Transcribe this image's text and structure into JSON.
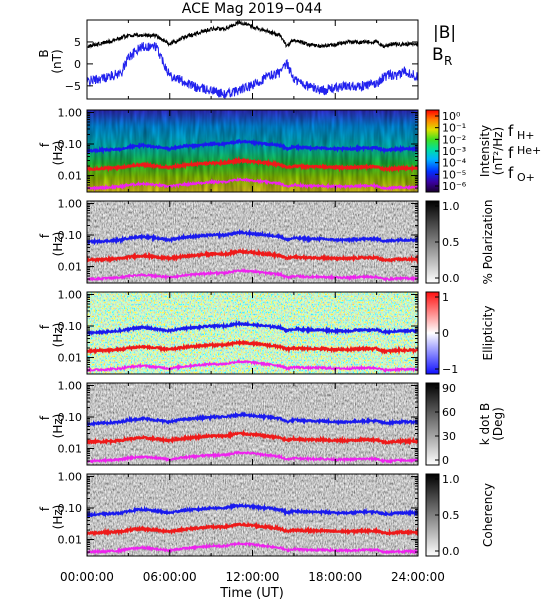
{
  "title": "ACE Mag 2019−044",
  "x_axis": {
    "label": "Time (UT)",
    "ticks": [
      "00:00:00",
      "06:00:00",
      "12:00:00",
      "18:00:00",
      "24:00:00"
    ],
    "range_hours": [
      0,
      24
    ]
  },
  "freq_ticks": [
    "1.00",
    "0.10",
    "0.01"
  ],
  "colors": {
    "B_total": "#000000",
    "B_R": "#2222ee",
    "f_H": "#1a1aee",
    "f_He": "#ee1a1a",
    "f_O": "#ee22ee",
    "legend_H": "#2222cc",
    "legend_He": "#cc2222",
    "legend_O": "#dd22dd"
  },
  "panels": [
    {
      "id": "mag",
      "ylabel": "B",
      "yunit": "(nT)",
      "yticks": [
        "5",
        "0",
        "−5"
      ],
      "ylim": [
        -8,
        10
      ]
    },
    {
      "id": "intensity",
      "ylabel": "f",
      "yunit": "(Hz)",
      "cbar_label": "Intensity",
      "cbar_unit": "(nT²/Hz)",
      "cbar_ticks": [
        "10⁰",
        "10⁻¹",
        "10⁻²",
        "10⁻³",
        "10⁻⁴",
        "10⁻⁵",
        "10⁻⁶"
      ]
    },
    {
      "id": "polarization",
      "ylabel": "f",
      "yunit": "(Hz)",
      "cbar_label": "% Polarization",
      "cbar_ticks": [
        "1.0",
        "0.5",
        "0.0"
      ]
    },
    {
      "id": "ellipticity",
      "ylabel": "f",
      "yunit": "(Hz)",
      "cbar_label": "Ellipticity",
      "cbar_ticks": [
        "1",
        "0",
        "−1"
      ]
    },
    {
      "id": "kdotb",
      "ylabel": "f",
      "yunit": "(Hz)",
      "cbar_label": "k dot B",
      "cbar_unit": "(Deg)",
      "cbar_ticks": [
        "90",
        "60",
        "30",
        "0"
      ]
    },
    {
      "id": "coherency",
      "ylabel": "f",
      "yunit": "(Hz)",
      "cbar_label": "Coherency",
      "cbar_ticks": [
        "1.0",
        "0.5",
        "0.0"
      ]
    }
  ],
  "mag_legend": {
    "total": "|B|",
    "radial": "B",
    "radial_sub": "R"
  },
  "ion_legend": [
    {
      "base": "f",
      "sub": "H+"
    },
    {
      "base": "f",
      "sub": "He+"
    },
    {
      "base": "f",
      "sub": "O+"
    }
  ],
  "chart_data": {
    "type": "line",
    "x": [
      0,
      1.5,
      2.5,
      3,
      4,
      5,
      6,
      7,
      8,
      9,
      10,
      11,
      12,
      13,
      14,
      14.5,
      15,
      16,
      17,
      18,
      19,
      20,
      21,
      21.5,
      22,
      22.5,
      23,
      24
    ],
    "series": [
      {
        "name": "|B|",
        "values": [
          4,
          5,
          6,
          6.5,
          6.5,
          6.5,
          4.5,
          6,
          7,
          8,
          8,
          9.5,
          8.5,
          7.5,
          6.5,
          4,
          5.5,
          4.5,
          4,
          4.5,
          5,
          5,
          5,
          4,
          4.5,
          4.5,
          4.5,
          4.5
        ]
      },
      {
        "name": "B_R",
        "values": [
          -4,
          -3,
          -2,
          1.5,
          4,
          4,
          -2.5,
          -4,
          -5.5,
          -6,
          -7,
          -6,
          -5,
          -3,
          -2,
          0,
          -3.5,
          -5,
          -6,
          -5.5,
          -5,
          -5,
          -4.5,
          -3,
          -2.5,
          -3,
          -1.5,
          -3
        ]
      },
      {
        "name": "f_H+",
        "values": [
          0.06,
          0.065,
          0.07,
          0.08,
          0.09,
          0.08,
          0.07,
          0.085,
          0.09,
          0.1,
          0.1,
          0.12,
          0.11,
          0.1,
          0.09,
          0.07,
          0.08,
          0.075,
          0.075,
          0.07,
          0.07,
          0.075,
          0.075,
          0.065,
          0.065,
          0.07,
          0.07,
          0.07
        ]
      },
      {
        "name": "f_He+",
        "values": [
          0.016,
          0.017,
          0.018,
          0.02,
          0.022,
          0.02,
          0.018,
          0.021,
          0.023,
          0.025,
          0.025,
          0.03,
          0.028,
          0.025,
          0.022,
          0.018,
          0.02,
          0.019,
          0.019,
          0.018,
          0.018,
          0.019,
          0.019,
          0.016,
          0.016,
          0.017,
          0.017,
          0.017
        ]
      },
      {
        "name": "f_O+",
        "values": [
          0.004,
          0.0042,
          0.0045,
          0.005,
          0.0055,
          0.005,
          0.0045,
          0.0052,
          0.0057,
          0.0062,
          0.0062,
          0.0075,
          0.007,
          0.0062,
          0.0055,
          0.0045,
          0.005,
          0.0047,
          0.0047,
          0.0045,
          0.0045,
          0.0047,
          0.0047,
          0.004,
          0.004,
          0.0042,
          0.0042,
          0.0042
        ]
      }
    ],
    "freq_range_hz": [
      0.003,
      1.2
    ],
    "yscale": "log"
  }
}
